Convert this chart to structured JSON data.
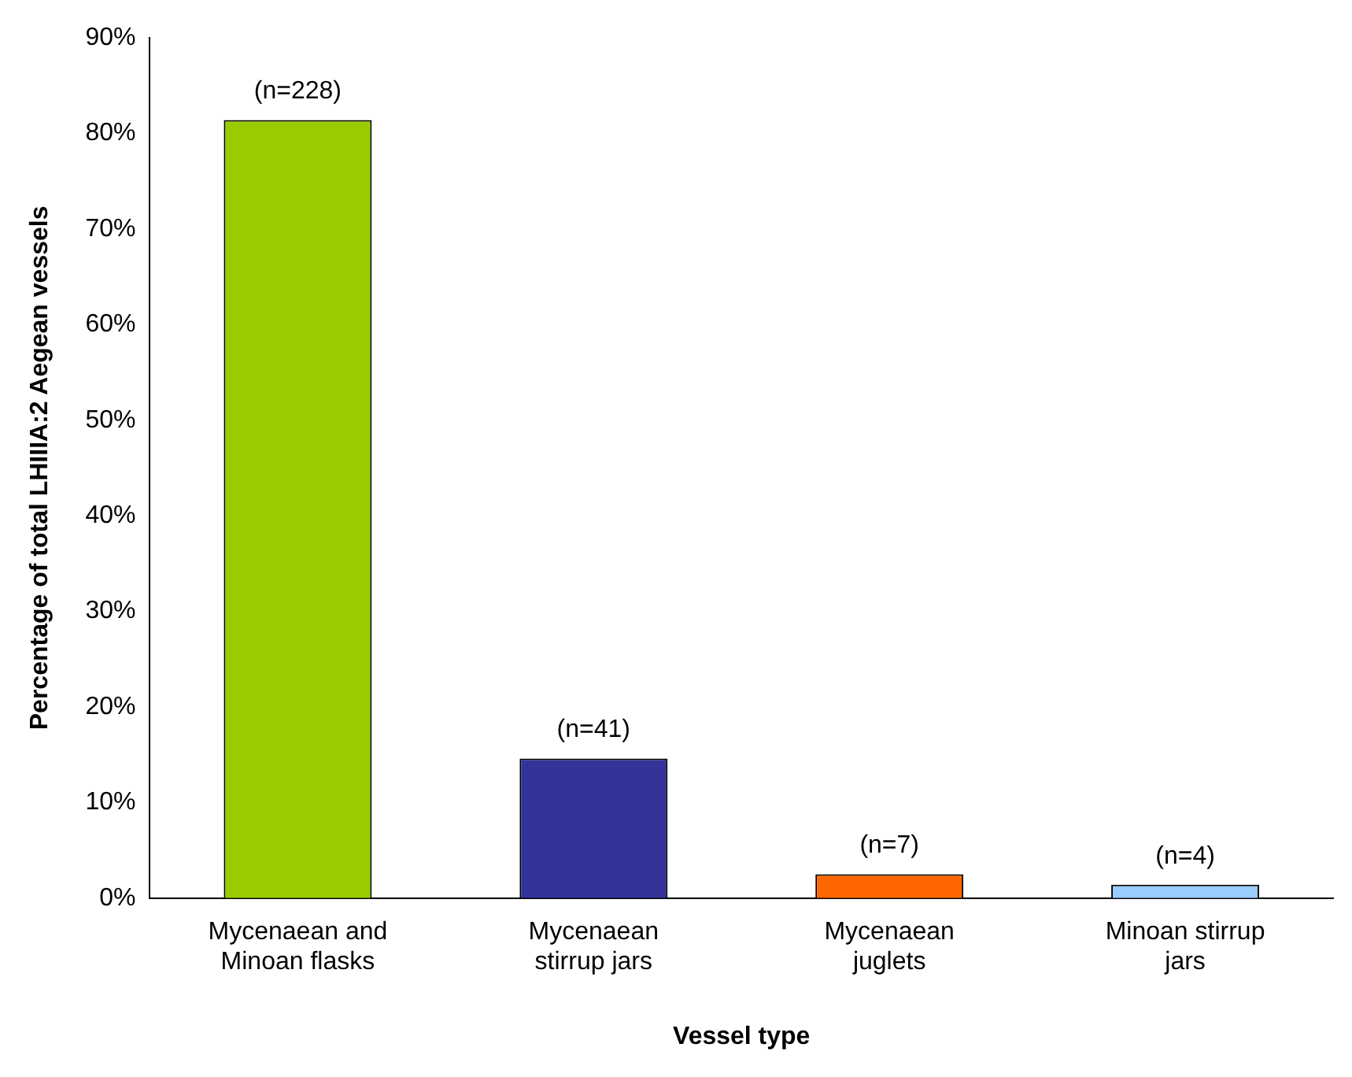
{
  "chart_data": {
    "type": "bar",
    "xlabel": "Vessel type",
    "ylabel": "Percentage of total LHIIIA:2 Aegean vessels",
    "categories": [
      "Mycenaean and Minoan flasks",
      "Mycenaean stirrup jars",
      "Mycenaean juglets",
      "Minoan stirrup jars"
    ],
    "values": [
      81.4,
      14.6,
      2.5,
      1.4
    ],
    "annotations": [
      {
        "text": "(n=228)",
        "x": "Mycenaean and Minoan flasks",
        "y": 81.4
      },
      {
        "text": "(n=41)",
        "x": "Mycenaean stirrup jars",
        "y": 14.6
      },
      {
        "text": "(n=7)",
        "x": "Mycenaean juglets",
        "y": 2.5
      },
      {
        "text": "(n=4)",
        "x": "Minoan stirrup jars",
        "y": 1.4
      }
    ],
    "colors": [
      "#99cc00",
      "#333399",
      "#ff6600",
      "#99ccff"
    ],
    "ylim": [
      0,
      90
    ],
    "yticks": [
      {
        "value": 0,
        "label": "0%"
      },
      {
        "value": 10,
        "label": "10%"
      },
      {
        "value": 20,
        "label": "20%"
      },
      {
        "value": 30,
        "label": "30%"
      },
      {
        "value": 40,
        "label": "40%"
      },
      {
        "value": 50,
        "label": "50%"
      },
      {
        "value": 60,
        "label": "60%"
      },
      {
        "value": 70,
        "label": "70%"
      },
      {
        "value": 80,
        "label": "80%"
      },
      {
        "value": 90,
        "label": "90%"
      }
    ],
    "grid": false,
    "legend": false
  }
}
